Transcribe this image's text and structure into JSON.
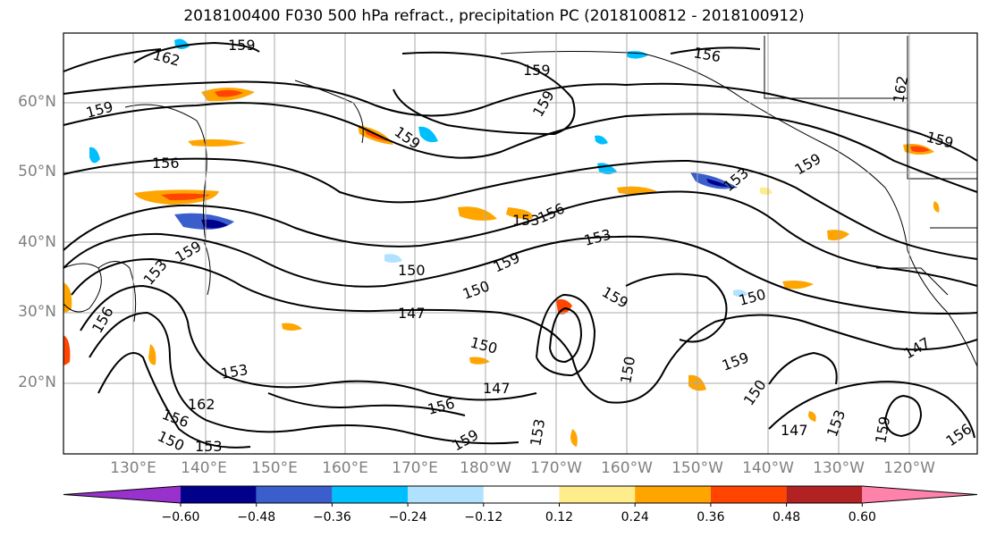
{
  "title": "2018100400 F030 500 hPa refract., precipitation PC (2018100812 - 2018100912)",
  "lat_labels": [
    "60°N",
    "50°N",
    "40°N",
    "30°N",
    "20°N"
  ],
  "lon_labels": [
    "130°E",
    "140°E",
    "150°E",
    "160°E",
    "170°E",
    "180°W",
    "170°W",
    "160°W",
    "150°W",
    "140°W",
    "130°W",
    "120°W"
  ],
  "contour_labels": [
    "162",
    "159",
    "159",
    "159",
    "156",
    "156",
    "159",
    "159",
    "162",
    "159",
    "159",
    "153",
    "153",
    "156",
    "153",
    "150",
    "159",
    "150",
    "147",
    "159",
    "150",
    "150",
    "147",
    "153",
    "162",
    "156",
    "150",
    "156",
    "159",
    "153",
    "159",
    "150",
    "147",
    "147",
    "153",
    "159",
    "156",
    "153",
    "150",
    "156",
    "159",
    "153"
  ],
  "colorbar": {
    "labels": [
      "−0.60",
      "−0.48",
      "−0.36",
      "−0.24",
      "−0.12",
      "0.12",
      "0.24",
      "0.36",
      "0.48",
      "0.60"
    ],
    "colors": [
      "#9932cc",
      "#00008b",
      "#3a5fcd",
      "#00bfff",
      "#b0e2ff",
      "#ffffff",
      "#ffec8b",
      "#ffa500",
      "#ff4500",
      "#b22222",
      "#ff82ab"
    ]
  }
}
